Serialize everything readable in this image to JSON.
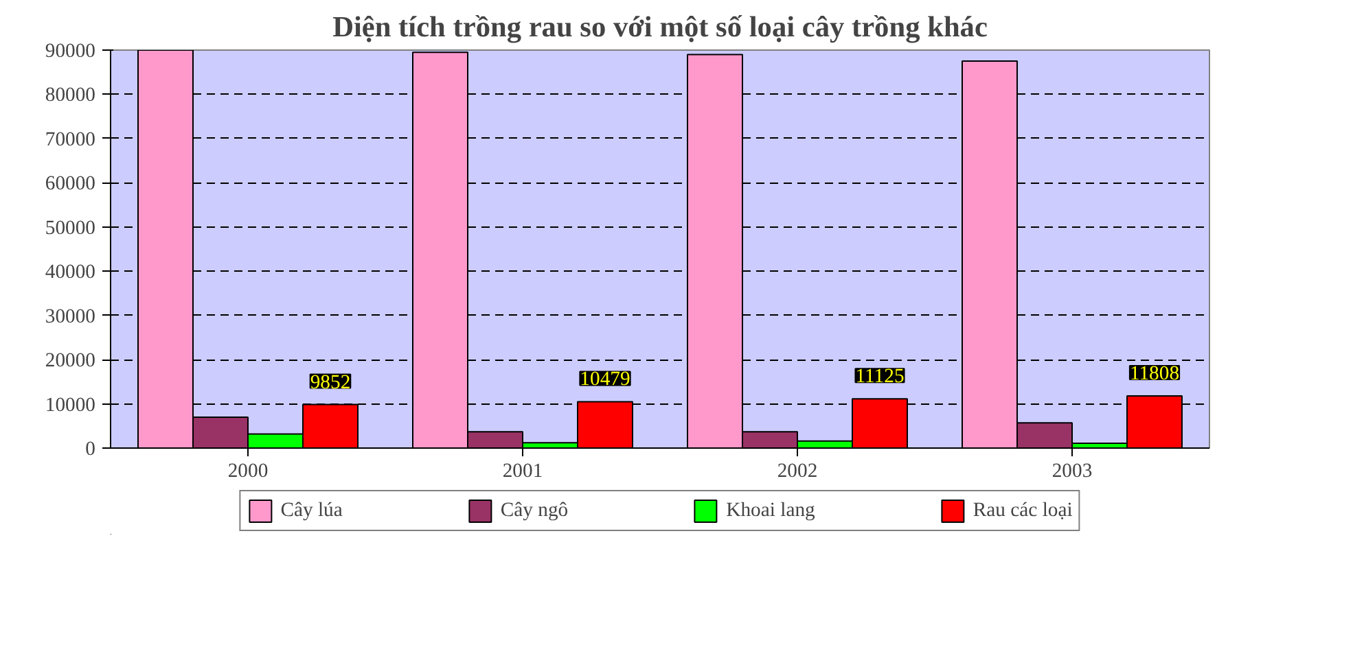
{
  "chart_data": {
    "type": "bar",
    "title": "Diện tích trồng rau so với một số loại cây trồng khác",
    "categories": [
      "2000",
      "2001",
      "2002",
      "2003"
    ],
    "series": [
      {
        "name": "Cây lúa",
        "color": "#ff99cc",
        "values": [
          90000,
          89500,
          89000,
          87500
        ]
      },
      {
        "name": "Cây ngô",
        "color": "#993366",
        "values": [
          7000,
          3700,
          3700,
          5700
        ]
      },
      {
        "name": "Khoai lang",
        "color": "#00ff00",
        "values": [
          3200,
          1200,
          1600,
          1100
        ]
      },
      {
        "name": "Rau các loại",
        "color": "#ff0000",
        "values": [
          9852,
          10479,
          11125,
          11808
        ],
        "value_labels": [
          "9852",
          "10479",
          "11125",
          "11808"
        ]
      }
    ],
    "ylim": [
      0,
      90000
    ],
    "yticks": [
      0,
      10000,
      20000,
      30000,
      40000,
      50000,
      60000,
      70000,
      80000,
      90000
    ],
    "grid": "y",
    "legend": "bottom"
  }
}
